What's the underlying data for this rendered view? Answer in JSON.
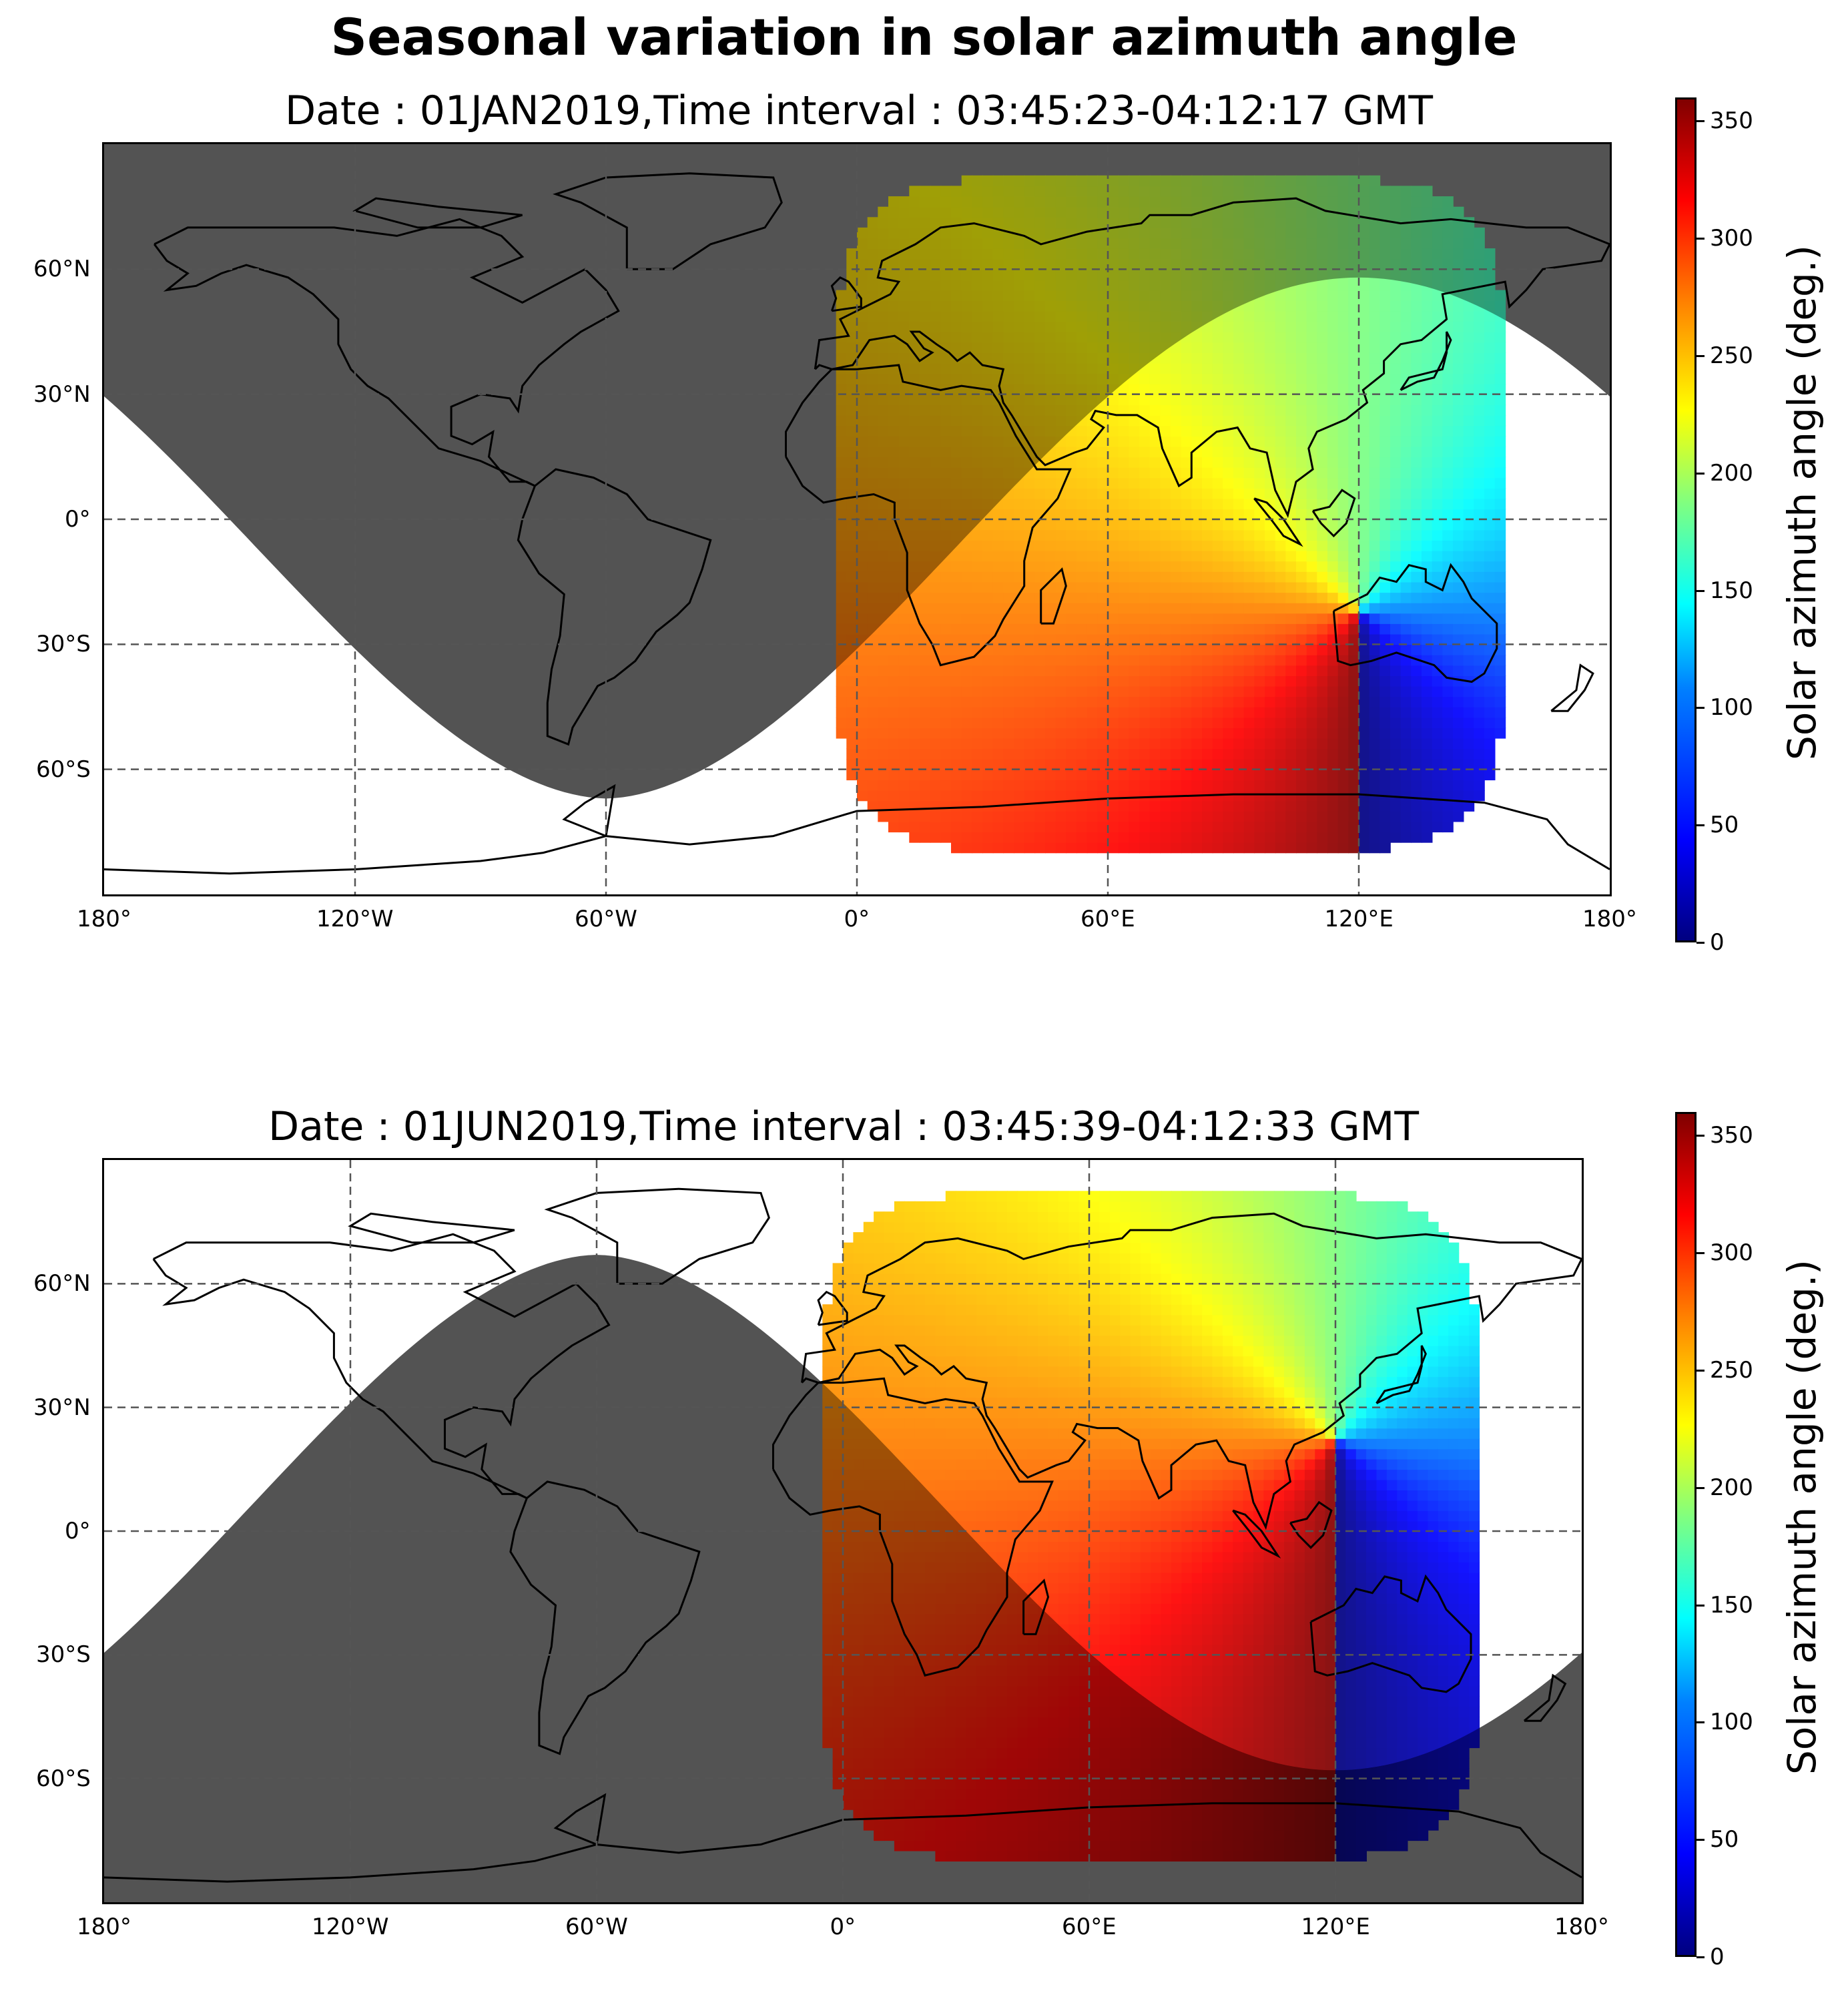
{
  "figure": {
    "title": "Seasonal variation in solar azimuth angle"
  },
  "chart_data": [
    {
      "type": "heatmap",
      "subtitle": "Date : 01JAN2019,Time interval : 03:45:23-04:12:17 GMT",
      "x_ticks": [
        "180°",
        "120°W",
        "60°W",
        "0°",
        "60°E",
        "120°E",
        "180°"
      ],
      "y_ticks": [
        "60°N",
        "30°N",
        "0°",
        "30°S",
        "60°S"
      ],
      "x_range": [
        -180,
        180
      ],
      "y_range": [
        -90,
        90
      ],
      "grid": true,
      "colorbar": {
        "label": "Solar azimuth angle (deg.)",
        "ticks": [
          "0",
          "50",
          "100",
          "150",
          "200",
          "250",
          "300",
          "350"
        ],
        "range": [
          0,
          360
        ],
        "colormap": "jet"
      },
      "coverage_lon": [
        -5,
        155
      ],
      "coverage_lat": [
        -80,
        82
      ],
      "pole_point": [
        120,
        -22
      ],
      "night_mask_phase": "january"
    },
    {
      "type": "heatmap",
      "subtitle": "Date : 01JUN2019,Time interval : 03:45:39-04:12:33 GMT",
      "x_ticks": [
        "180°",
        "120°W",
        "60°W",
        "0°",
        "60°E",
        "120°E",
        "180°"
      ],
      "y_ticks": [
        "60°N",
        "30°N",
        "0°",
        "30°S",
        "60°S"
      ],
      "x_range": [
        -180,
        180
      ],
      "y_range": [
        -90,
        90
      ],
      "grid": true,
      "colorbar": {
        "label": "Solar azimuth angle (deg.)",
        "ticks": [
          "0",
          "50",
          "100",
          "150",
          "200",
          "250",
          "300",
          "350"
        ],
        "range": [
          0,
          360
        ],
        "colormap": "jet"
      },
      "coverage_lon": [
        -5,
        155
      ],
      "coverage_lat": [
        -80,
        82
      ],
      "pole_point": [
        120,
        22
      ],
      "night_mask_phase": "june"
    }
  ],
  "colors": {
    "night_mask": "#808080",
    "coastline": "#000000",
    "grid": "#555555"
  }
}
